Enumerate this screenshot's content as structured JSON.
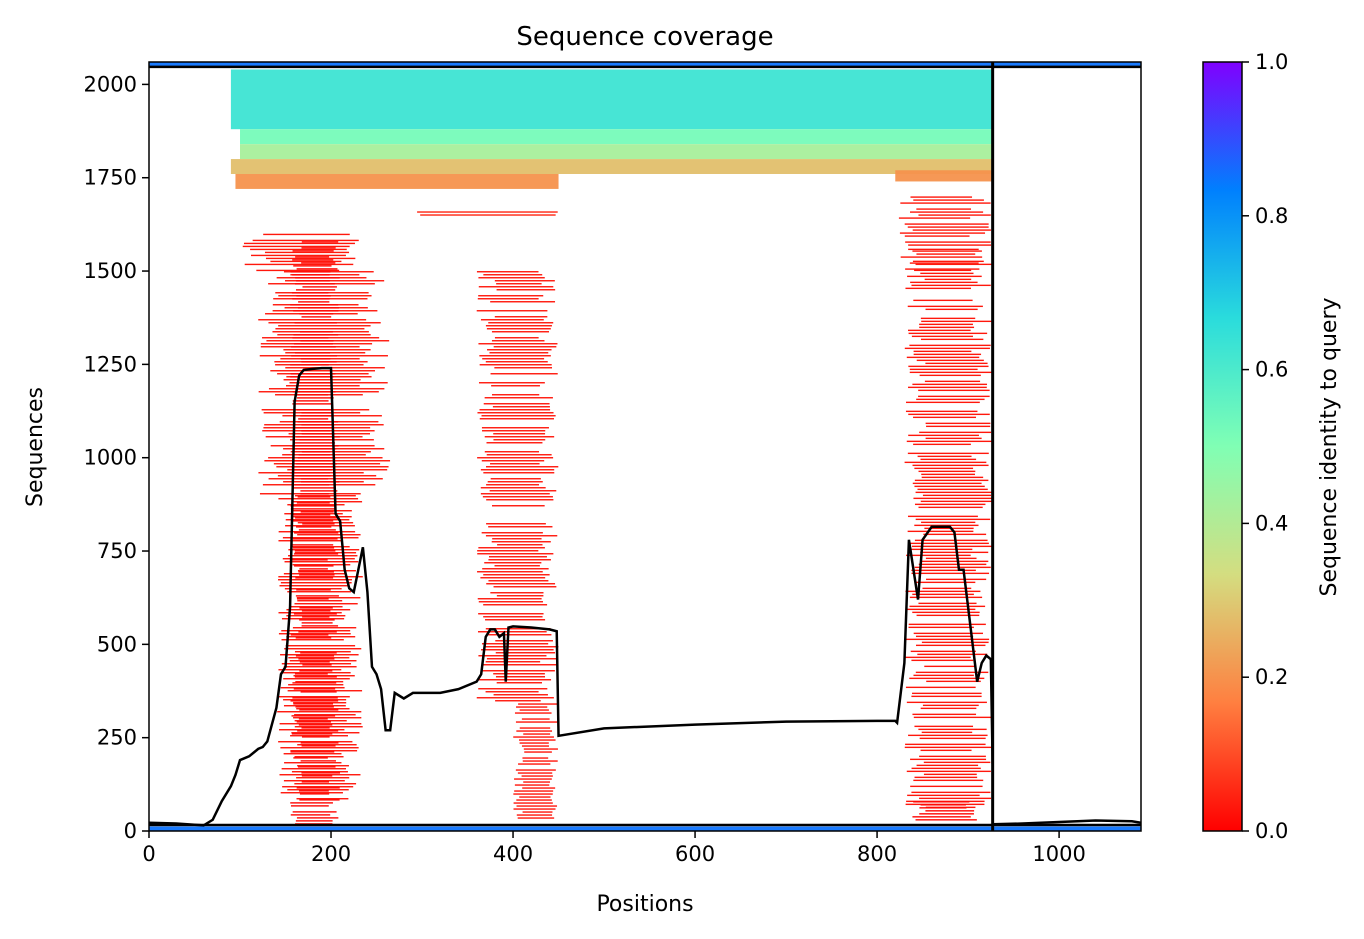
{
  "chart_data": {
    "type": "heatmap",
    "title": "Sequence coverage",
    "xlabel": "Positions",
    "ylabel": "Sequences",
    "xlim": [
      0,
      1090
    ],
    "ylim": [
      0,
      2060
    ],
    "grid": false,
    "x_ticks": [
      0,
      200,
      400,
      600,
      800,
      1000
    ],
    "y_ticks": [
      0,
      250,
      500,
      750,
      1000,
      1250,
      1500,
      1750,
      2000
    ],
    "colorbar": {
      "label": "Sequence identity to query",
      "range": [
        0.0,
        1.0
      ],
      "ticks": [
        "0.0",
        "0.2",
        "0.4",
        "0.6",
        "0.8",
        "1.0"
      ],
      "colormap": "rainbow_r",
      "colors": [
        "#ff0000",
        "#ff7f40",
        "#d4dd80",
        "#80ffb4",
        "#2adcdc",
        "#0080fe",
        "#8000ff"
      ]
    },
    "boundary_x": 927,
    "query_row_y": 2047,
    "baseline_y": 16,
    "coverage_blocks": [
      {
        "x0": 0,
        "x1": 1090,
        "y0": 2048,
        "y1": 2060,
        "identity": 0.85
      },
      {
        "x0": 90,
        "x1": 927,
        "y0": 1880,
        "y1": 2040,
        "identity": 0.63
      },
      {
        "x0": 100,
        "x1": 927,
        "y0": 1840,
        "y1": 1880,
        "identity": 0.52
      },
      {
        "x0": 100,
        "x1": 927,
        "y0": 1800,
        "y1": 1840,
        "identity": 0.42
      },
      {
        "x0": 90,
        "x1": 927,
        "y0": 1760,
        "y1": 1800,
        "identity": 0.28
      },
      {
        "x0": 95,
        "x1": 450,
        "y0": 1720,
        "y1": 1760,
        "identity": 0.2
      },
      {
        "x0": 820,
        "x1": 927,
        "y0": 1740,
        "y1": 1770,
        "identity": 0.2
      },
      {
        "x0": 270,
        "x1": 450,
        "y0": 1640,
        "y1": 1660,
        "identity": 0.05
      },
      {
        "x0": 820,
        "x1": 927,
        "y0": 1500,
        "y1": 1700,
        "identity": 0.03
      },
      {
        "x0": 100,
        "x1": 245,
        "y0": 1500,
        "y1": 1600,
        "identity": 0.03
      },
      {
        "x0": 120,
        "x1": 265,
        "y0": 900,
        "y1": 1500,
        "identity": 0.03
      },
      {
        "x0": 140,
        "x1": 235,
        "y0": 80,
        "y1": 900,
        "identity": 0.03
      },
      {
        "x0": 155,
        "x1": 210,
        "y0": 20,
        "y1": 1580,
        "identity": 0.01
      },
      {
        "x0": 360,
        "x1": 450,
        "y0": 350,
        "y1": 1500,
        "identity": 0.03
      },
      {
        "x0": 400,
        "x1": 450,
        "y0": 30,
        "y1": 350,
        "identity": 0.03
      },
      {
        "x0": 830,
        "x1": 927,
        "y0": 60,
        "y1": 1560,
        "identity": 0.03
      },
      {
        "x0": 835,
        "x1": 910,
        "y0": 25,
        "y1": 80,
        "identity": 0.01
      },
      {
        "x0": 0,
        "x1": 1090,
        "y0": 0,
        "y1": 12,
        "identity": 0.85
      }
    ],
    "coverage_line": {
      "x": [
        0,
        30,
        60,
        70,
        80,
        90,
        95,
        100,
        105,
        110,
        115,
        120,
        125,
        130,
        140,
        145,
        150,
        155,
        160,
        165,
        170,
        180,
        190,
        200,
        205,
        210,
        215,
        220,
        225,
        230,
        235,
        240,
        245,
        250,
        255,
        260,
        265,
        270,
        280,
        290,
        300,
        320,
        340,
        360,
        365,
        370,
        375,
        380,
        385,
        390,
        392,
        395,
        400,
        420,
        440,
        448,
        450,
        500,
        600,
        700,
        800,
        820,
        822,
        830,
        835,
        840,
        845,
        850,
        860,
        870,
        880,
        885,
        890,
        895,
        900,
        905,
        910,
        915,
        920,
        925,
        927
      ],
      "y": [
        22,
        20,
        15,
        30,
        80,
        120,
        150,
        190,
        195,
        200,
        210,
        220,
        225,
        240,
        330,
        420,
        440,
        600,
        1150,
        1220,
        1235,
        1238,
        1240,
        1240,
        850,
        830,
        700,
        650,
        640,
        700,
        760,
        640,
        440,
        420,
        380,
        270,
        270,
        370,
        355,
        370,
        370,
        370,
        380,
        400,
        420,
        520,
        540,
        540,
        520,
        530,
        400,
        545,
        548,
        545,
        540,
        535,
        255,
        275,
        285,
        293,
        295,
        295,
        290,
        450,
        780,
        700,
        620,
        780,
        815,
        815,
        815,
        800,
        700,
        700,
        600,
        500,
        400,
        450,
        470,
        460,
        180
      ],
      "tail_x": [
        927,
        960,
        1000,
        1040,
        1080,
        1090
      ],
      "tail_y": [
        18,
        20,
        24,
        28,
        26,
        22
      ]
    }
  }
}
